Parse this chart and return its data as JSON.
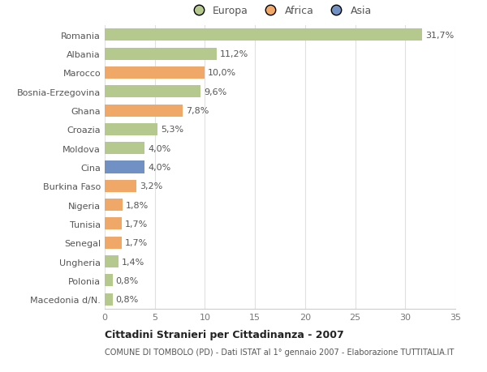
{
  "categories": [
    "Romania",
    "Albania",
    "Marocco",
    "Bosnia-Erzegovina",
    "Ghana",
    "Croazia",
    "Moldova",
    "Cina",
    "Burkina Faso",
    "Nigeria",
    "Tunisia",
    "Senegal",
    "Ungheria",
    "Polonia",
    "Macedonia d/N."
  ],
  "values": [
    31.7,
    11.2,
    10.0,
    9.6,
    7.8,
    5.3,
    4.0,
    4.0,
    3.2,
    1.8,
    1.7,
    1.7,
    1.4,
    0.8,
    0.8
  ],
  "labels": [
    "31,7%",
    "11,2%",
    "10,0%",
    "9,6%",
    "7,8%",
    "5,3%",
    "4,0%",
    "4,0%",
    "3,2%",
    "1,8%",
    "1,7%",
    "1,7%",
    "1,4%",
    "0,8%",
    "0,8%"
  ],
  "continents": [
    "Europa",
    "Europa",
    "Africa",
    "Europa",
    "Africa",
    "Europa",
    "Europa",
    "Asia",
    "Africa",
    "Africa",
    "Africa",
    "Africa",
    "Europa",
    "Europa",
    "Europa"
  ],
  "colors": {
    "Europa": "#b5c98e",
    "Africa": "#f0a868",
    "Asia": "#7191c4"
  },
  "title": "Cittadini Stranieri per Cittadinanza - 2007",
  "subtitle": "COMUNE DI TOMBOLO (PD) - Dati ISTAT al 1° gennaio 2007 - Elaborazione TUTTITALIA.IT",
  "xlim": [
    0,
    35
  ],
  "xticks": [
    0,
    5,
    10,
    15,
    20,
    25,
    30,
    35
  ],
  "background_color": "#ffffff",
  "grid_color": "#e0e0e0",
  "bar_height": 0.65,
  "label_fontsize": 8,
  "tick_fontsize": 8
}
